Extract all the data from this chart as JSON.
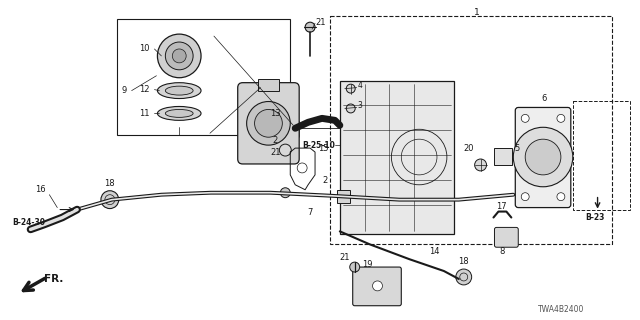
{
  "bg_color": "#ffffff",
  "dc": "#1a1a1a",
  "part_number_text": "TWA4B2400",
  "ref_b23": "B-23",
  "ref_b2510": "B-25-10",
  "ref_b2430": "B-24-30"
}
